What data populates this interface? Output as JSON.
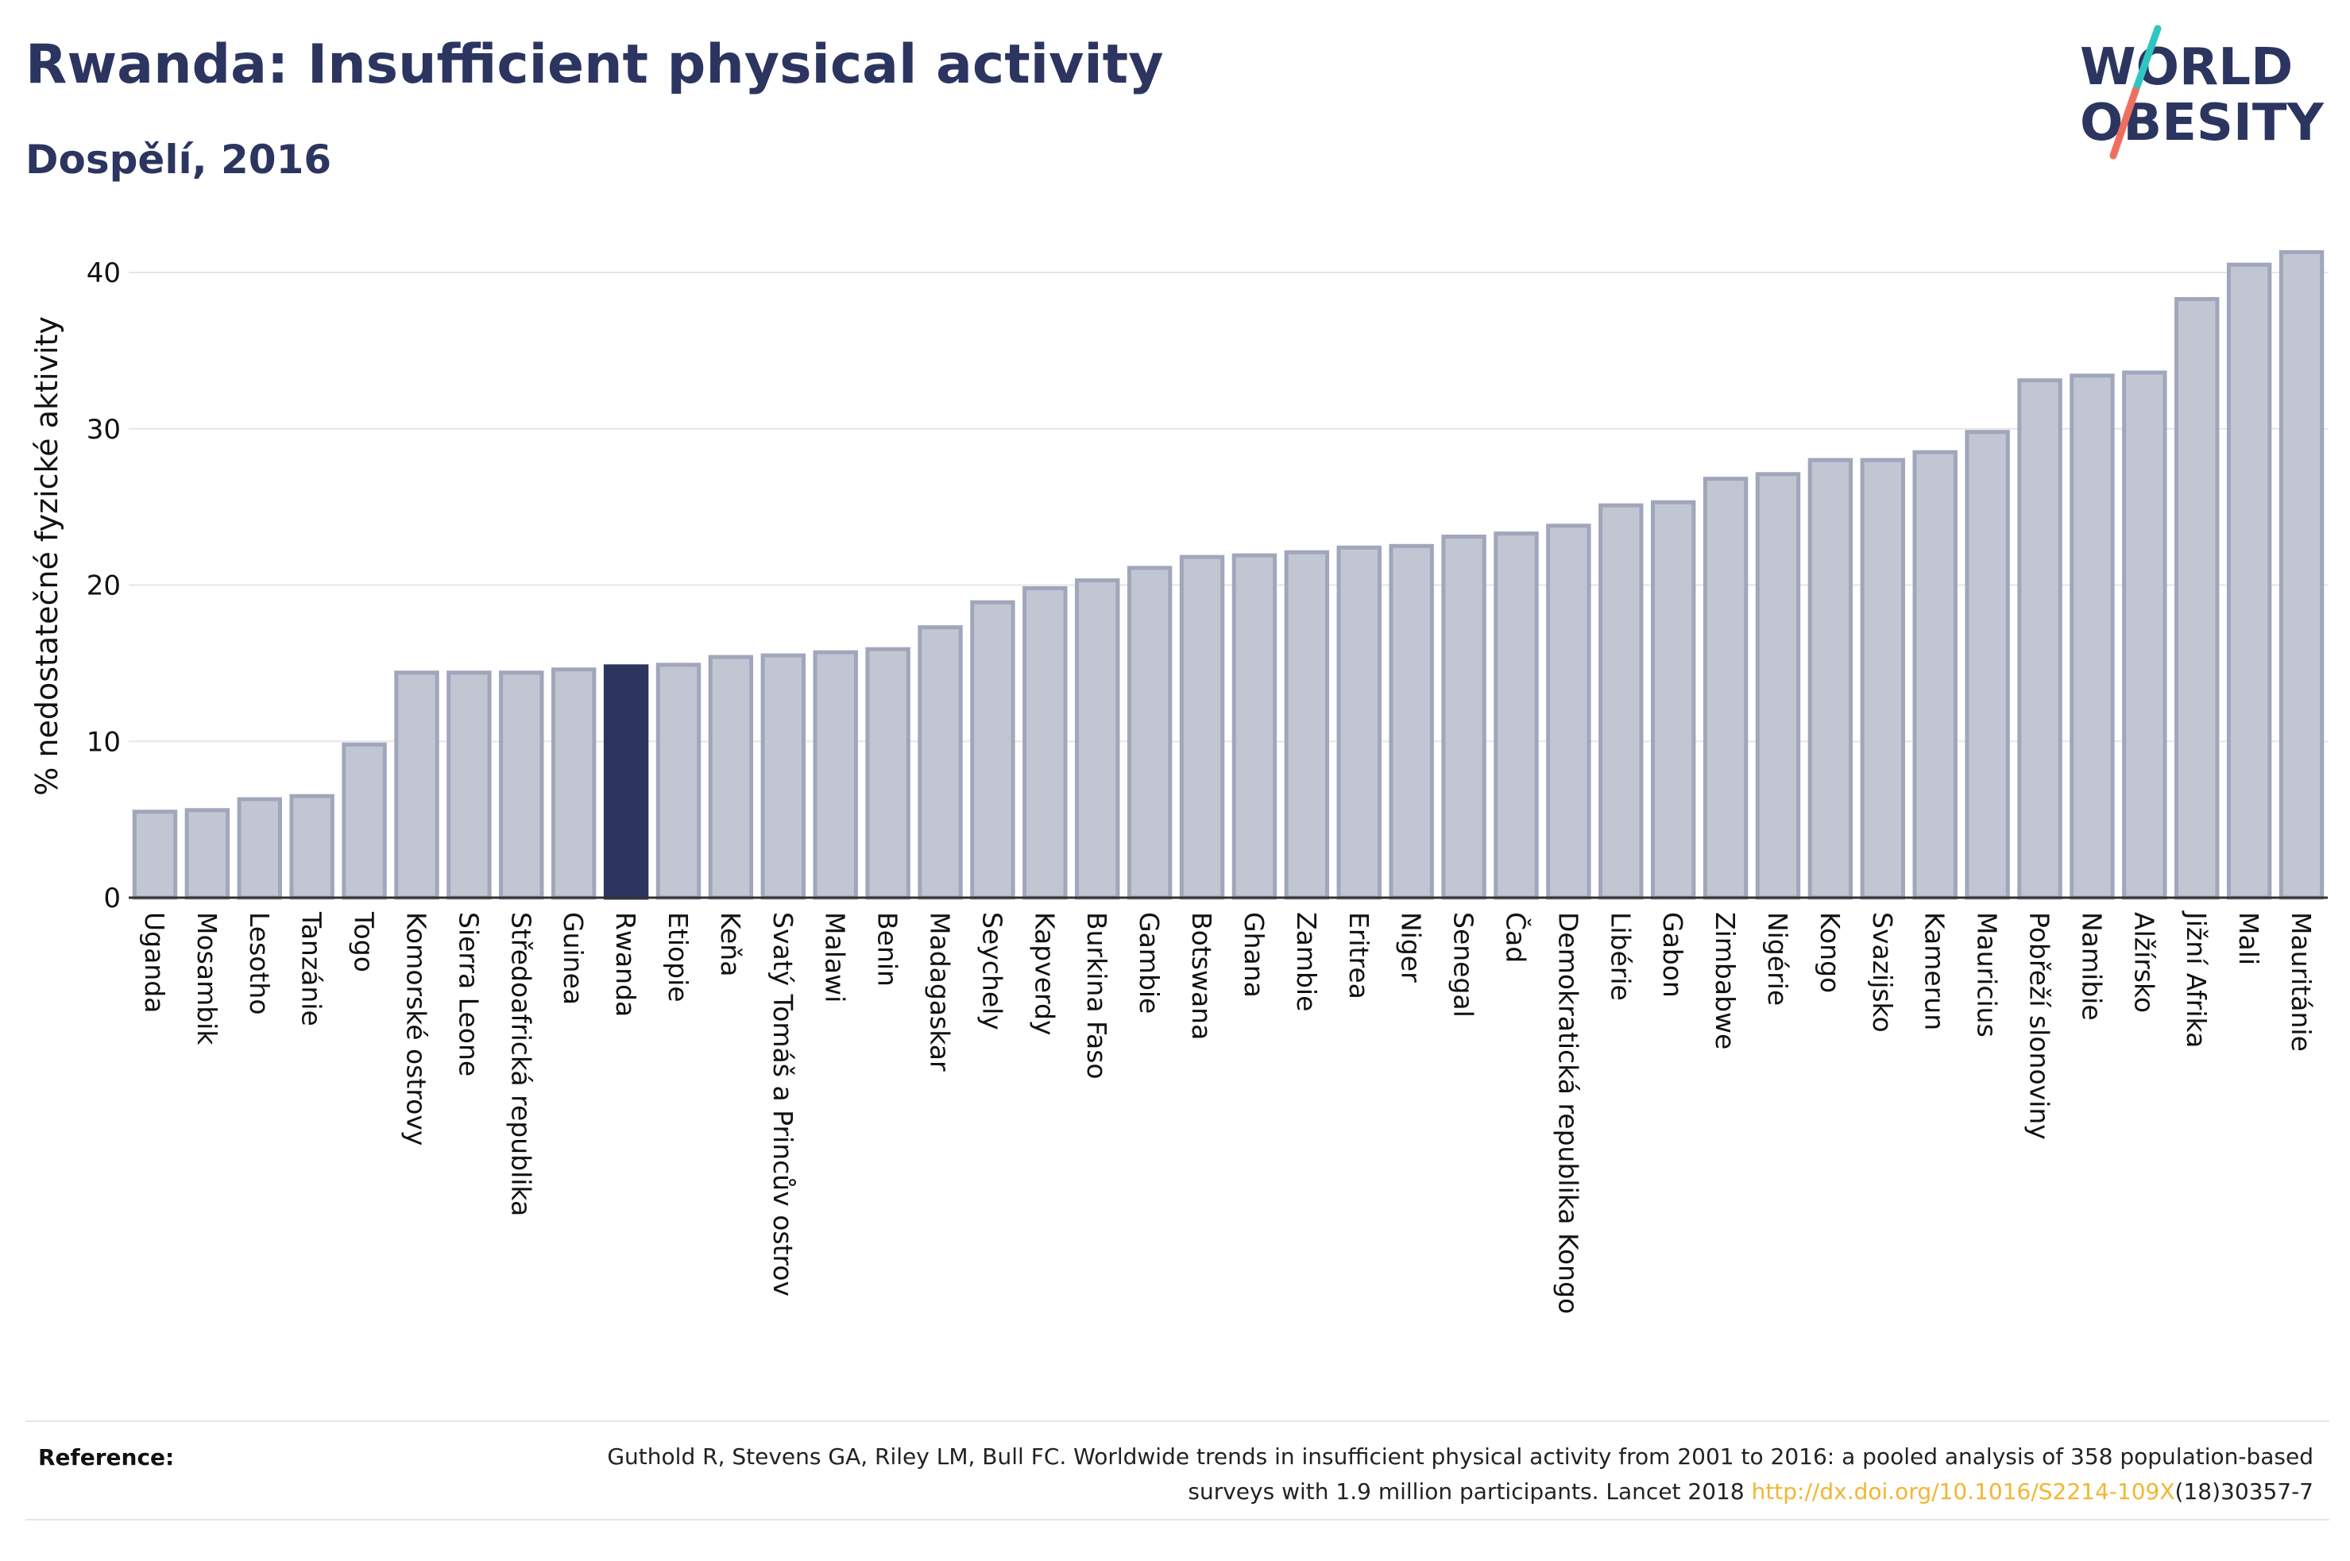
{
  "header": {
    "title": "Rwanda: Insufficient physical activity",
    "subtitle": "Dospělí, 2016"
  },
  "logo": {
    "line1": "WORLD",
    "line2": "OBESITY",
    "slash_colors": [
      "#2fc6c1",
      "#ef6f5e"
    ]
  },
  "chart_data": {
    "type": "bar",
    "title": "Rwanda: Insufficient physical activity",
    "subtitle": "Dospělí, 2016",
    "xlabel": "",
    "ylabel": "% nedostatečné fyzické aktivity",
    "ylim": [
      0,
      42
    ],
    "yticks": [
      0,
      10,
      20,
      30,
      40
    ],
    "grid": true,
    "highlight": "Rwanda",
    "colors": {
      "default": "#c2c6d2",
      "default_border": "#a0a6bb",
      "highlight": "#2b3560"
    },
    "categories": [
      "Uganda",
      "Mosambik",
      "Lesotho",
      "Tanzánie",
      "Togo",
      "Komorské ostrovy",
      "Sierra Leone",
      "Středoafrická republika",
      "Guinea",
      "Rwanda",
      "Etiopie",
      "Keňa",
      "Svatý Tomáš a Princův ostrov",
      "Malawi",
      "Benin",
      "Madagaskar",
      "Seychely",
      "Kapverdy",
      "Burkina Faso",
      "Gambie",
      "Botswana",
      "Ghana",
      "Zambie",
      "Eritrea",
      "Niger",
      "Senegal",
      "Čad",
      "Demokratická republika Kongo",
      "Libérie",
      "Gabon",
      "Zimbabwe",
      "Nigérie",
      "Kongo",
      "Svazijsko",
      "Kamerun",
      "Mauricius",
      "Pobřeží slonoviny",
      "Namibie",
      "Alžírsko",
      "Jižní Afrika",
      "Mali",
      "Mauritánie"
    ],
    "values": [
      5.5,
      5.6,
      6.3,
      6.5,
      9.8,
      14.4,
      14.4,
      14.4,
      14.6,
      14.8,
      14.9,
      15.4,
      15.5,
      15.7,
      15.9,
      17.3,
      18.9,
      19.8,
      20.3,
      21.1,
      21.8,
      21.9,
      22.1,
      22.4,
      22.5,
      23.1,
      23.3,
      23.8,
      25.1,
      25.3,
      26.8,
      27.1,
      28.0,
      28.0,
      28.5,
      29.8,
      33.1,
      33.4,
      33.6,
      38.3,
      40.5,
      41.3
    ]
  },
  "reference": {
    "label": "Reference:",
    "text_before": "Guthold R, Stevens GA, Riley LM, Bull FC. Worldwide trends in insufficient physical activity from 2001 to 2016: a pooled analysis of 358 population-based surveys with 1.9 million participants. Lancet 2018 ",
    "link": "http://dx.doi.org/10.1016/S2214-109X",
    "text_after": "(18)30357-7"
  }
}
